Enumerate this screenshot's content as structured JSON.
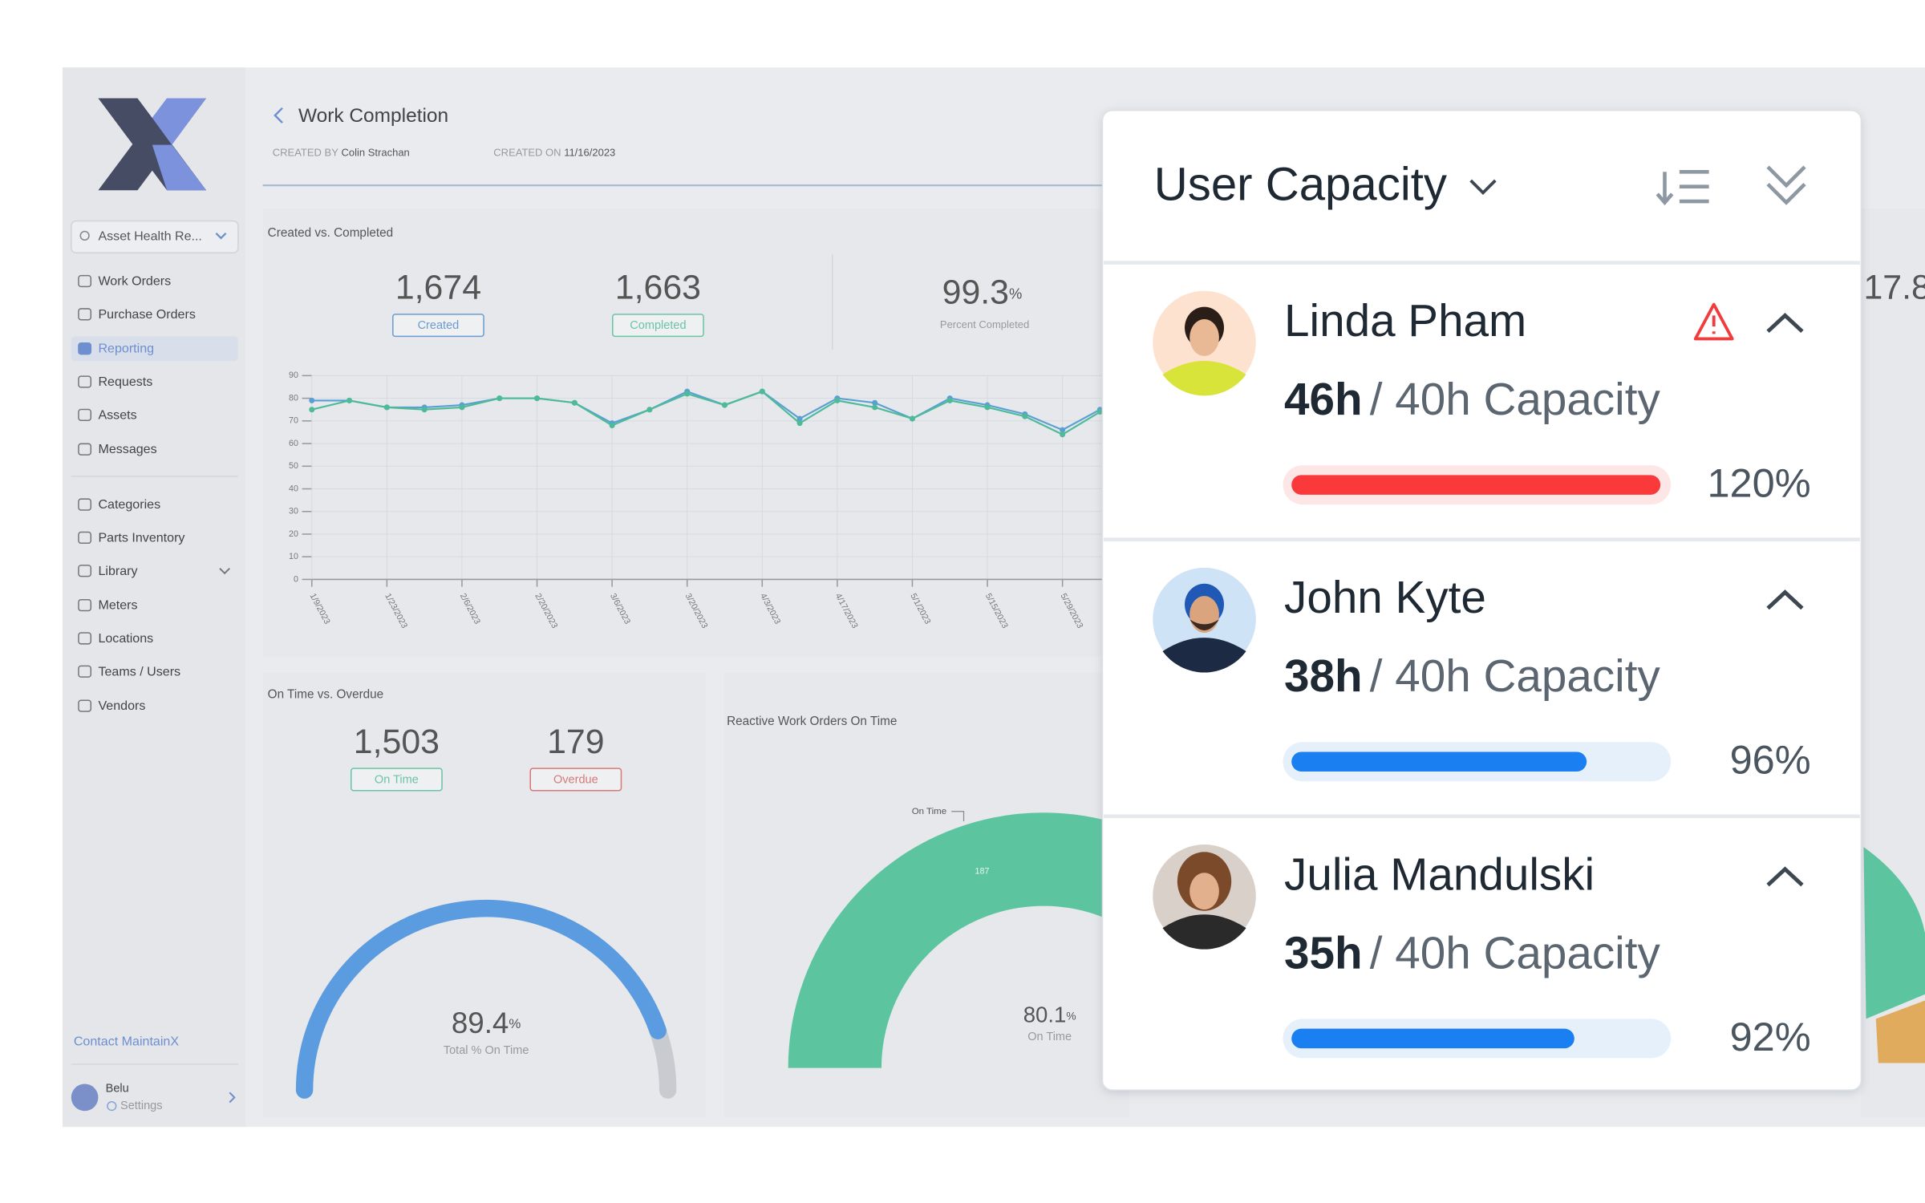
{
  "sidebar": {
    "search": "Asset Health Re...",
    "nav": [
      [
        "Work Orders",
        "Purchase Orders",
        "Reporting",
        "Requests",
        "Assets",
        "Messages"
      ],
      [
        "Categories",
        "Parts Inventory",
        "Library",
        "Meters",
        "Locations",
        "Teams / Users",
        "Vendors"
      ]
    ],
    "active": [
      0,
      2
    ],
    "contact": "Contact MaintainX",
    "user": "Belu",
    "settings": "Settings"
  },
  "header": {
    "title": "Work Completion",
    "created_by_label": "CREATED BY",
    "created_by": "Colin Strachan",
    "created_on_label": "CREATED ON",
    "created_on": "11/16/2023"
  },
  "created_vs_completed": {
    "title": "Created vs. Completed",
    "stats": [
      {
        "value": "1,674",
        "label": "Created",
        "color": "#6d9bd1"
      },
      {
        "value": "1,663",
        "label": "Completed",
        "color": "#6cc3a5"
      }
    ],
    "percent": {
      "value": "99.3",
      "unit": "%",
      "label": "Percent Completed"
    },
    "chart_data": {
      "type": "line",
      "categories": [
        "1/9/2023",
        null,
        "1/23/2023",
        null,
        "2/6/2023",
        null,
        "2/20/2023",
        null,
        "3/6/2023",
        null,
        "3/20/2023",
        null,
        "4/3/2023",
        null,
        "4/17/2023",
        null,
        "5/1/2023",
        null,
        "5/15/2023",
        null,
        "5/29/2023",
        null
      ],
      "series": [
        {
          "color": "#5a9fd4",
          "values": [
            79,
            79,
            76,
            76,
            77,
            80,
            80,
            78,
            69,
            75,
            83,
            77,
            83,
            71,
            80,
            78,
            71,
            80,
            77,
            73,
            66,
            75
          ]
        },
        {
          "color": "#4dbb98",
          "values": [
            75,
            79,
            76,
            75,
            76,
            80,
            80,
            78,
            68,
            75,
            82,
            77,
            83,
            69,
            79,
            76,
            71,
            79,
            76,
            72,
            64,
            74
          ]
        }
      ],
      "ylim": [
        0,
        90
      ],
      "yticks": [
        0,
        10,
        20,
        30,
        40,
        50,
        60,
        70,
        80,
        90
      ],
      "grid": true
    }
  },
  "on_time_vs_overdue": {
    "title": "On Time vs. Overdue",
    "stats": [
      {
        "value": "1,503",
        "label": "On Time",
        "color": "#6cc3a5"
      },
      {
        "value": "179",
        "label": "Overdue",
        "color": "#d9787a"
      }
    ],
    "gauge": {
      "value": 89.4,
      "unit": "%",
      "label": "Total % On Time",
      "color": "#5b9be0"
    }
  },
  "reactive": {
    "title": "Reactive Work Orders On Time",
    "callout": "On Time",
    "segment_label": "187",
    "gauge": {
      "value": 80.1,
      "unit": "%",
      "label": "On Time",
      "color": "#5cc5a0"
    },
    "side_value": "17.8"
  },
  "user_capacity": {
    "title": "User Capacity",
    "users": [
      {
        "name": "Linda Pham",
        "hours": "46h",
        "capacity": "/ 40h Capacity",
        "utilization": 120,
        "utilization_label": "120%",
        "warning": true,
        "color": "#fa3a3a",
        "track": "#fde6e6"
      },
      {
        "name": "John Kyte",
        "hours": "38h",
        "capacity": "/ 40h Capacity",
        "utilization": 96,
        "utilization_label": "96%",
        "warning": false,
        "color": "#1a7ff0",
        "track": "#e6f0fb"
      },
      {
        "name": "Julia Mandulski",
        "hours": "35h",
        "capacity": "/ 40h Capacity",
        "utilization": 92,
        "utilization_label": "92%",
        "warning": false,
        "color": "#1a7ff0",
        "track": "#e6f0fb"
      }
    ]
  }
}
